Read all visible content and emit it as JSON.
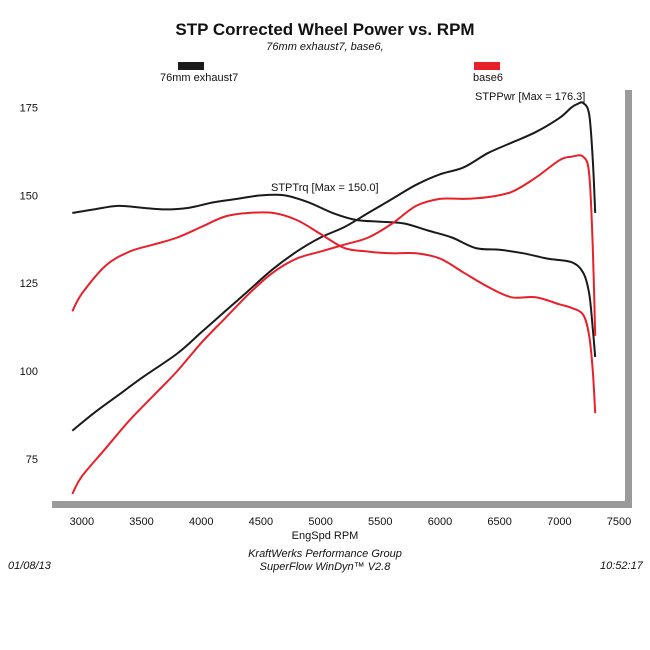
{
  "chart_data": {
    "type": "line",
    "title": "STP Corrected Wheel Power vs. RPM",
    "subtitle": "76mm exhaust7, base6,",
    "xlabel": "EngSpd  RPM",
    "ylabel": "",
    "xlim": [
      2750,
      7550
    ],
    "ylim": [
      63,
      180
    ],
    "x_ticks": [
      3000,
      3500,
      4000,
      4500,
      5000,
      5500,
      6000,
      6500,
      7000,
      7500
    ],
    "y_ticks": [
      75,
      100,
      125,
      150,
      175
    ],
    "grid": false,
    "legend": [
      {
        "name": "76mm exhaust7",
        "color": "#1a1a1a"
      },
      {
        "name": "base6",
        "color": "#e8202a"
      }
    ],
    "annotations": [
      {
        "text": "STPTrq [Max = 150.0]"
      },
      {
        "text": "STPPwr [Max = 176.3]"
      }
    ],
    "series": [
      {
        "name": "76mm exhaust7",
        "quantity": "STPPwr",
        "color": "#1a1a1a",
        "x": [
          2920,
          3100,
          3300,
          3500,
          3800,
          4000,
          4200,
          4400,
          4600,
          4800,
          5000,
          5200,
          5400,
          5600,
          5800,
          6000,
          6200,
          6400,
          6600,
          6800,
          7000,
          7100,
          7150,
          7200,
          7250,
          7280,
          7300
        ],
        "y": [
          83,
          88,
          93,
          98,
          105,
          111,
          117,
          123,
          129,
          134,
          138,
          141,
          145,
          149,
          153,
          156,
          158,
          162,
          165,
          168,
          172,
          175,
          176,
          176.3,
          173,
          160,
          145
        ]
      },
      {
        "name": "76mm exhaust7",
        "quantity": "STPTrq",
        "color": "#1a1a1a",
        "x": [
          2920,
          3100,
          3300,
          3500,
          3700,
          3900,
          4100,
          4300,
          4500,
          4700,
          4900,
          5100,
          5300,
          5500,
          5700,
          5900,
          6100,
          6300,
          6500,
          6700,
          6900,
          7100,
          7200,
          7250,
          7280,
          7300
        ],
        "y": [
          145,
          146,
          147,
          146.5,
          146,
          146.5,
          148,
          149,
          150,
          150,
          148,
          145,
          143,
          142.5,
          142,
          140,
          138,
          135,
          134.5,
          133.5,
          132,
          131,
          128,
          122,
          112,
          104
        ]
      },
      {
        "name": "base6",
        "quantity": "STPPwr",
        "color": "#e8202a",
        "x": [
          2920,
          3000,
          3200,
          3400,
          3600,
          3800,
          4000,
          4200,
          4400,
          4600,
          4800,
          5000,
          5200,
          5400,
          5600,
          5800,
          6000,
          6200,
          6400,
          6600,
          6800,
          7000,
          7100,
          7200,
          7250,
          7280,
          7300
        ],
        "y": [
          65,
          70,
          78,
          86,
          93,
          100,
          108,
          115,
          122,
          128,
          132,
          134,
          136,
          138,
          142,
          147,
          149,
          149,
          149.5,
          151,
          155,
          160,
          161,
          161,
          156,
          135,
          110
        ]
      },
      {
        "name": "base6",
        "quantity": "STPTrq",
        "color": "#e8202a",
        "x": [
          2920,
          3000,
          3200,
          3400,
          3600,
          3800,
          4000,
          4200,
          4400,
          4600,
          4800,
          5000,
          5200,
          5400,
          5600,
          5800,
          6000,
          6200,
          6400,
          6600,
          6800,
          7000,
          7100,
          7200,
          7250,
          7280,
          7300
        ],
        "y": [
          117,
          122,
          130,
          134,
          136,
          138,
          141,
          144,
          145,
          145,
          143,
          139,
          135,
          134,
          133.5,
          133.5,
          132,
          128,
          124,
          121,
          121,
          119,
          118,
          116,
          110,
          100,
          88
        ]
      }
    ]
  },
  "footer": {
    "date": "01/08/13",
    "time": "10:52:17",
    "company": "KraftWerks Performance Group",
    "software": "SuperFlow WinDyn™ V2.8"
  }
}
